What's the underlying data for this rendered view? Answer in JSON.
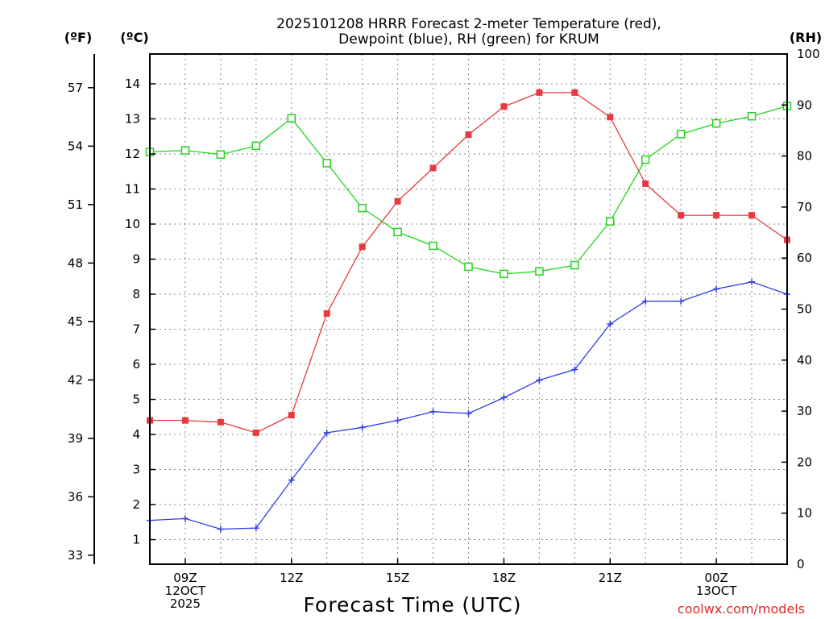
{
  "chart_data": {
    "type": "line",
    "title_line1": "2025101208 HRRR Forecast 2-meter Temperature (red),",
    "title_line2": "Dewpoint (blue), RH (green) for KRUM",
    "xlabel": "Forecast Time (UTC)",
    "credit": "coolwx.com/models",
    "unit_f": "(ºF)",
    "unit_c": "(ºC)",
    "unit_rh": "(RH)",
    "x_hours": [
      8,
      9,
      10,
      11,
      12,
      13,
      14,
      15,
      16,
      17,
      18,
      19,
      20,
      21,
      22,
      23,
      24,
      25,
      26
    ],
    "xlim": [
      8,
      26
    ],
    "x_ticks": [
      {
        "hour": 9,
        "lines": [
          "09Z",
          "12OCT",
          "2025"
        ]
      },
      {
        "hour": 12,
        "lines": [
          "12Z"
        ]
      },
      {
        "hour": 15,
        "lines": [
          "15Z"
        ]
      },
      {
        "hour": 18,
        "lines": [
          "18Z"
        ]
      },
      {
        "hour": 21,
        "lines": [
          "21Z"
        ]
      },
      {
        "hour": 24,
        "lines": [
          "00Z",
          "13OCT"
        ]
      }
    ],
    "ylim_c": [
      0.3,
      14.85
    ],
    "ylim_rh": [
      0,
      100
    ],
    "y_ticks_c": [
      "1",
      "2",
      "3",
      "4",
      "5",
      "6",
      "7",
      "8",
      "9",
      "10",
      "11",
      "12",
      "13",
      "14"
    ],
    "y_ticks_f": [
      "33",
      "36",
      "39",
      "42",
      "45",
      "48",
      "51",
      "54",
      "57"
    ],
    "y_ticks_rh": [
      "0",
      "10",
      "20",
      "30",
      "40",
      "50",
      "60",
      "70",
      "80",
      "90",
      "100"
    ],
    "series": [
      {
        "name": "Temperature",
        "axis": "c",
        "color": "#e8393c",
        "marker": "filled-square",
        "values": [
          4.4,
          4.4,
          4.35,
          4.05,
          4.55,
          7.45,
          9.35,
          10.65,
          11.6,
          12.55,
          13.35,
          13.75,
          13.75,
          13.05,
          11.15,
          10.25,
          10.25,
          10.25,
          9.55
        ]
      },
      {
        "name": "Dewpoint",
        "axis": "c",
        "color": "#2f3ee4",
        "marker": "plus",
        "values": [
          1.55,
          1.6,
          1.3,
          1.33,
          2.7,
          4.05,
          4.2,
          4.4,
          4.65,
          4.6,
          5.05,
          5.55,
          5.85,
          7.15,
          7.8,
          7.8,
          8.15,
          8.35,
          8.0
        ]
      },
      {
        "name": "RH",
        "axis": "rh",
        "color": "#22d31f",
        "marker": "open-square",
        "values": [
          80.8,
          81.1,
          80.3,
          82.0,
          87.4,
          78.6,
          69.8,
          65.1,
          62.4,
          58.3,
          56.9,
          57.4,
          58.6,
          67.2,
          79.3,
          84.3,
          86.4,
          87.8,
          89.8
        ]
      }
    ]
  }
}
